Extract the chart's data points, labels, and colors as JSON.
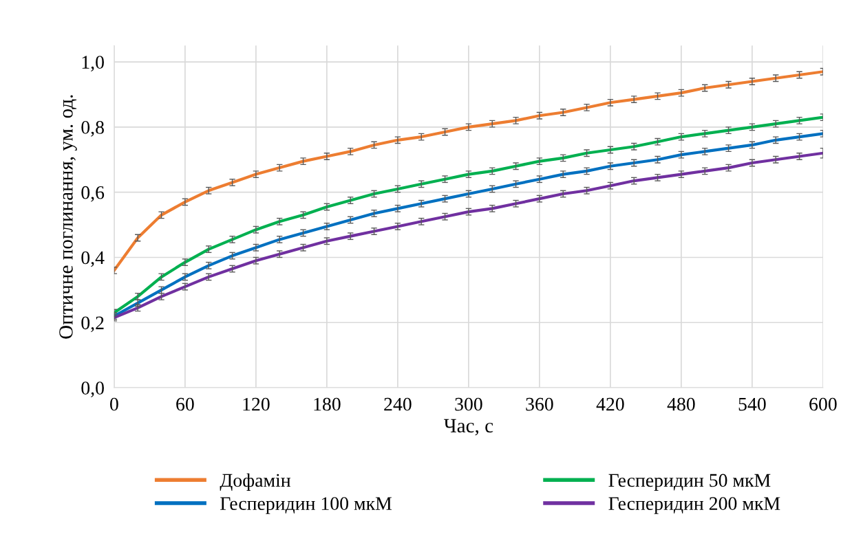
{
  "chart_data": {
    "type": "line",
    "xlabel": "Час, с",
    "ylabel": "Оптичне поглинання, ум. од.",
    "x": [
      0,
      20,
      40,
      60,
      80,
      100,
      120,
      140,
      160,
      180,
      200,
      220,
      240,
      260,
      280,
      300,
      320,
      340,
      360,
      380,
      400,
      420,
      440,
      460,
      480,
      500,
      520,
      540,
      560,
      580,
      600
    ],
    "xlim": [
      0,
      600
    ],
    "xticks": [
      0,
      60,
      120,
      180,
      240,
      300,
      360,
      420,
      480,
      540,
      600
    ],
    "ylim": [
      0,
      1.05
    ],
    "yticks": [
      {
        "value": 0,
        "label": "0,0"
      },
      {
        "value": 0.2,
        "label": "0,2"
      },
      {
        "value": 0.4,
        "label": "0,4"
      },
      {
        "value": 0.6,
        "label": "0,6"
      },
      {
        "value": 0.8,
        "label": "0,8"
      },
      {
        "value": 1.0,
        "label": "1,0"
      }
    ],
    "grid": true,
    "legend": "bottom",
    "marker": "none",
    "line_style": "solid",
    "series": [
      {
        "name": "Дофамін",
        "color": "#ed7d31",
        "values": [
          0.36,
          0.46,
          0.53,
          0.57,
          0.605,
          0.63,
          0.655,
          0.675,
          0.695,
          0.71,
          0.725,
          0.745,
          0.76,
          0.77,
          0.785,
          0.8,
          0.81,
          0.82,
          0.835,
          0.845,
          0.86,
          0.875,
          0.885,
          0.895,
          0.905,
          0.92,
          0.93,
          0.94,
          0.95,
          0.96,
          0.97
        ],
        "errors": [
          0.01,
          0.01,
          0.01,
          0.01,
          0.01,
          0.01,
          0.01,
          0.01,
          0.01,
          0.01,
          0.01,
          0.01,
          0.01,
          0.01,
          0.01,
          0.01,
          0.01,
          0.01,
          0.01,
          0.01,
          0.01,
          0.01,
          0.01,
          0.01,
          0.01,
          0.01,
          0.01,
          0.01,
          0.01,
          0.01,
          0.01
        ]
      },
      {
        "name": "Гесперидин 50 мкМ",
        "color": "#00b050",
        "values": [
          0.23,
          0.28,
          0.34,
          0.385,
          0.425,
          0.455,
          0.485,
          0.51,
          0.53,
          0.555,
          0.575,
          0.595,
          0.61,
          0.625,
          0.64,
          0.655,
          0.665,
          0.68,
          0.695,
          0.705,
          0.72,
          0.73,
          0.74,
          0.755,
          0.77,
          0.78,
          0.79,
          0.8,
          0.81,
          0.82,
          0.83
        ],
        "errors": [
          0.01,
          0.01,
          0.01,
          0.01,
          0.01,
          0.01,
          0.01,
          0.01,
          0.01,
          0.01,
          0.01,
          0.01,
          0.01,
          0.01,
          0.01,
          0.01,
          0.01,
          0.01,
          0.01,
          0.01,
          0.01,
          0.01,
          0.01,
          0.01,
          0.01,
          0.01,
          0.01,
          0.01,
          0.01,
          0.01,
          0.01
        ]
      },
      {
        "name": "Гесперидин 100 мкМ",
        "color": "#0070c0",
        "values": [
          0.22,
          0.26,
          0.3,
          0.34,
          0.375,
          0.405,
          0.43,
          0.455,
          0.475,
          0.495,
          0.515,
          0.535,
          0.55,
          0.565,
          0.58,
          0.595,
          0.61,
          0.625,
          0.64,
          0.655,
          0.665,
          0.68,
          0.69,
          0.7,
          0.715,
          0.725,
          0.735,
          0.745,
          0.76,
          0.77,
          0.78
        ],
        "errors": [
          0.01,
          0.01,
          0.01,
          0.01,
          0.01,
          0.01,
          0.01,
          0.01,
          0.01,
          0.01,
          0.01,
          0.01,
          0.01,
          0.01,
          0.01,
          0.01,
          0.01,
          0.01,
          0.01,
          0.01,
          0.01,
          0.01,
          0.01,
          0.01,
          0.01,
          0.01,
          0.01,
          0.01,
          0.01,
          0.01,
          0.01
        ]
      },
      {
        "name": "Гесперидин 200 мкМ",
        "color": "#7030a0",
        "values": [
          0.215,
          0.245,
          0.28,
          0.31,
          0.34,
          0.365,
          0.39,
          0.41,
          0.43,
          0.45,
          0.465,
          0.48,
          0.495,
          0.51,
          0.525,
          0.54,
          0.55,
          0.565,
          0.58,
          0.595,
          0.605,
          0.62,
          0.635,
          0.645,
          0.655,
          0.665,
          0.675,
          0.69,
          0.7,
          0.71,
          0.72
        ],
        "errors": [
          0.01,
          0.01,
          0.01,
          0.01,
          0.01,
          0.01,
          0.01,
          0.01,
          0.01,
          0.01,
          0.01,
          0.01,
          0.01,
          0.01,
          0.01,
          0.01,
          0.01,
          0.01,
          0.01,
          0.01,
          0.01,
          0.01,
          0.01,
          0.01,
          0.01,
          0.01,
          0.01,
          0.01,
          0.01,
          0.01,
          0.015
        ]
      }
    ]
  }
}
